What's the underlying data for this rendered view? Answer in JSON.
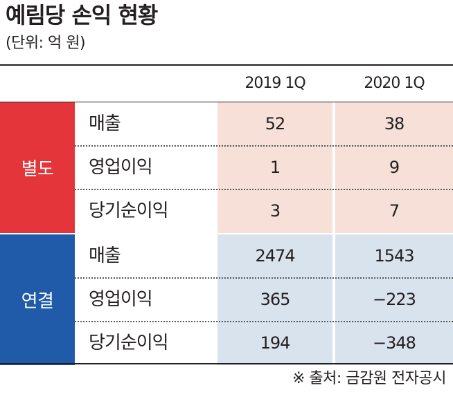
{
  "title": "예림당 손익 현황",
  "unit": "(단위: 억 원)",
  "source": "※ 출처: 금감원 전자공시",
  "colors": {
    "separate_label": "#e3353a",
    "separate_cell": "#f6e0d8",
    "consolidated_label": "#1f5ba8",
    "consolidated_cell": "#d9e3ee"
  },
  "chart_data": {
    "type": "table",
    "columns": [
      "2019 1Q",
      "2020 1Q"
    ],
    "groups": [
      {
        "name": "별도",
        "rows": [
          {
            "label": "매출",
            "values": [
              "52",
              "38"
            ]
          },
          {
            "label": "영업이익",
            "values": [
              "1",
              "9"
            ]
          },
          {
            "label": "당기순이익",
            "values": [
              "3",
              "7"
            ]
          }
        ]
      },
      {
        "name": "연결",
        "rows": [
          {
            "label": "매출",
            "values": [
              "2474",
              "1543"
            ]
          },
          {
            "label": "영업이익",
            "values": [
              "365",
              "−223"
            ]
          },
          {
            "label": "당기순이익",
            "values": [
              "194",
              "−348"
            ]
          }
        ]
      }
    ]
  }
}
